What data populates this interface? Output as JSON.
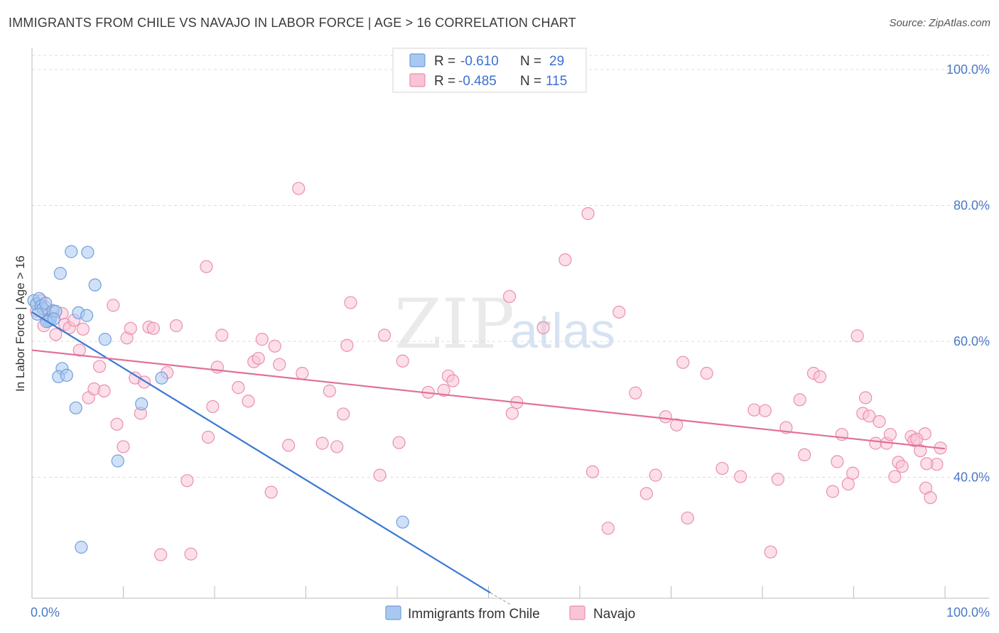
{
  "header": {
    "title": "IMMIGRANTS FROM CHILE VS NAVAJO IN LABOR FORCE | AGE > 16 CORRELATION CHART",
    "source": "Source: ZipAtlas.com"
  },
  "watermark": {
    "zip": "ZIP",
    "atlas": "atlas"
  },
  "legend": {
    "r_label": "R =",
    "n_label": "N =",
    "rows": [
      {
        "r": "-0.610",
        "n": "29",
        "color": "#a9c8f0",
        "stroke": "#6f9fdc"
      },
      {
        "r": "-0.485",
        "n": "115",
        "color": "#f9c4d6",
        "stroke": "#e98fb0"
      }
    ]
  },
  "bottom_legend": [
    {
      "label": "Immigrants from Chile",
      "color": "#a9c8f0",
      "stroke": "#6f9fdc"
    },
    {
      "label": "Navajo",
      "color": "#f9c4d6",
      "stroke": "#e98fb0"
    }
  ],
  "chart_data": {
    "type": "scatter",
    "ylabel": "In Labor Force | Age > 16",
    "xlim": [
      0,
      100
    ],
    "ylim": [
      20,
      104
    ],
    "y_ticks": [
      {
        "value": 100,
        "label": "100.0%"
      },
      {
        "value": 80,
        "label": "80.0%"
      },
      {
        "value": 60,
        "label": "60.0%"
      },
      {
        "value": 40,
        "label": "40.0%"
      }
    ],
    "x_tick_labels": {
      "left": "0.0%",
      "right": "100.0%"
    },
    "x_minor_ticks": [
      10,
      20,
      30,
      40,
      50,
      60,
      70,
      80,
      90,
      100
    ],
    "grid": true,
    "series": [
      {
        "name": "Immigrants from Chile",
        "color": "#a9c8f0",
        "stroke": "#6f9fdc",
        "line_color": "#3a78d4",
        "trend": {
          "x0": 0,
          "y0": 64.3,
          "x1": 50.2,
          "y1": 23.0,
          "dash_to_x": 52.5,
          "dash_to_y": 21.2
        },
        "points": [
          [
            0.2,
            66.0
          ],
          [
            0.5,
            65.5
          ],
          [
            0.8,
            66.3
          ],
          [
            1.0,
            65.2
          ],
          [
            1.2,
            64.8
          ],
          [
            1.5,
            65.6
          ],
          [
            1.8,
            63.0
          ],
          [
            2.0,
            63.2
          ],
          [
            2.3,
            64.5
          ],
          [
            2.6,
            64.4
          ],
          [
            3.1,
            70.0
          ],
          [
            3.3,
            56.0
          ],
          [
            2.9,
            54.8
          ],
          [
            3.8,
            55.0
          ],
          [
            4.3,
            73.2
          ],
          [
            4.8,
            50.2
          ],
          [
            5.1,
            64.2
          ],
          [
            5.4,
            29.7
          ],
          [
            6.0,
            63.8
          ],
          [
            6.1,
            73.1
          ],
          [
            6.9,
            68.3
          ],
          [
            8.0,
            60.3
          ],
          [
            9.4,
            42.4
          ],
          [
            12.0,
            50.8
          ],
          [
            14.2,
            54.6
          ],
          [
            40.6,
            33.4
          ],
          [
            0.6,
            64.0
          ],
          [
            1.6,
            62.9
          ],
          [
            2.4,
            63.3
          ]
        ]
      },
      {
        "name": "Navajo",
        "color": "#f9c4d6",
        "stroke": "#e98fb0",
        "line_color": "#e07099",
        "trend": {
          "x0": 0,
          "y0": 58.7,
          "x1": 100,
          "y1": 44.2
        },
        "points": [
          [
            0.5,
            64.5
          ],
          [
            1.0,
            66.0
          ],
          [
            1.5,
            65.0
          ],
          [
            2.0,
            63.5
          ],
          [
            2.6,
            61.0
          ],
          [
            3.3,
            64.1
          ],
          [
            3.6,
            62.5
          ],
          [
            4.1,
            62.0
          ],
          [
            4.6,
            63.1
          ],
          [
            5.2,
            58.7
          ],
          [
            5.6,
            61.8
          ],
          [
            6.2,
            51.7
          ],
          [
            6.8,
            53.0
          ],
          [
            7.4,
            56.3
          ],
          [
            7.9,
            52.7
          ],
          [
            8.9,
            65.3
          ],
          [
            9.3,
            47.8
          ],
          [
            10.0,
            44.5
          ],
          [
            10.4,
            60.5
          ],
          [
            10.8,
            61.9
          ],
          [
            11.3,
            54.6
          ],
          [
            11.9,
            49.4
          ],
          [
            12.3,
            54.0
          ],
          [
            12.8,
            62.1
          ],
          [
            13.3,
            61.9
          ],
          [
            14.1,
            28.6
          ],
          [
            14.8,
            55.4
          ],
          [
            15.8,
            62.3
          ],
          [
            17.0,
            39.5
          ],
          [
            17.4,
            28.7
          ],
          [
            19.1,
            71.0
          ],
          [
            19.3,
            45.9
          ],
          [
            19.8,
            50.4
          ],
          [
            20.3,
            56.2
          ],
          [
            20.8,
            60.9
          ],
          [
            22.6,
            53.2
          ],
          [
            23.7,
            51.2
          ],
          [
            24.3,
            57.0
          ],
          [
            24.8,
            57.5
          ],
          [
            25.2,
            60.3
          ],
          [
            26.2,
            37.8
          ],
          [
            26.6,
            59.3
          ],
          [
            27.1,
            56.6
          ],
          [
            28.1,
            44.7
          ],
          [
            29.6,
            55.3
          ],
          [
            29.2,
            82.5
          ],
          [
            31.8,
            45.0
          ],
          [
            32.6,
            52.7
          ],
          [
            33.4,
            44.5
          ],
          [
            34.1,
            49.3
          ],
          [
            34.9,
            65.7
          ],
          [
            34.5,
            59.4
          ],
          [
            38.1,
            40.3
          ],
          [
            38.6,
            60.9
          ],
          [
            40.6,
            57.1
          ],
          [
            40.2,
            45.1
          ],
          [
            43.4,
            52.5
          ],
          [
            45.6,
            54.9
          ],
          [
            46.1,
            54.2
          ],
          [
            45.1,
            52.8
          ],
          [
            52.3,
            66.6
          ],
          [
            52.6,
            49.4
          ],
          [
            53.1,
            51.0
          ],
          [
            56.0,
            62.0
          ],
          [
            58.4,
            72.0
          ],
          [
            60.9,
            78.8
          ],
          [
            61.4,
            40.8
          ],
          [
            63.1,
            32.5
          ],
          [
            64.3,
            64.3
          ],
          [
            66.1,
            52.4
          ],
          [
            67.3,
            37.6
          ],
          [
            68.3,
            40.3
          ],
          [
            69.4,
            48.9
          ],
          [
            70.6,
            47.7
          ],
          [
            71.3,
            56.9
          ],
          [
            71.8,
            34.0
          ],
          [
            73.9,
            55.3
          ],
          [
            75.6,
            41.3
          ],
          [
            77.6,
            40.1
          ],
          [
            79.1,
            49.9
          ],
          [
            80.3,
            49.8
          ],
          [
            80.9,
            29.0
          ],
          [
            81.7,
            39.7
          ],
          [
            82.6,
            47.3
          ],
          [
            84.1,
            51.4
          ],
          [
            84.6,
            43.3
          ],
          [
            85.6,
            55.3
          ],
          [
            86.3,
            54.8
          ],
          [
            87.7,
            37.9
          ],
          [
            88.2,
            42.3
          ],
          [
            88.7,
            46.3
          ],
          [
            89.4,
            39.0
          ],
          [
            89.9,
            40.6
          ],
          [
            90.4,
            60.8
          ],
          [
            91.0,
            49.4
          ],
          [
            91.3,
            51.7
          ],
          [
            91.7,
            49.0
          ],
          [
            92.4,
            45.0
          ],
          [
            92.8,
            48.2
          ],
          [
            93.6,
            45.0
          ],
          [
            94.0,
            46.3
          ],
          [
            94.5,
            40.1
          ],
          [
            94.9,
            42.2
          ],
          [
            95.3,
            41.6
          ],
          [
            96.3,
            46.0
          ],
          [
            96.6,
            45.4
          ],
          [
            97.8,
            46.4
          ],
          [
            97.3,
            43.9
          ],
          [
            97.9,
            38.4
          ],
          [
            98.4,
            37.0
          ],
          [
            99.1,
            41.9
          ],
          [
            99.5,
            44.3
          ],
          [
            96.9,
            45.6
          ],
          [
            98.0,
            42.0
          ],
          [
            1.3,
            62.3
          ]
        ]
      }
    ]
  }
}
